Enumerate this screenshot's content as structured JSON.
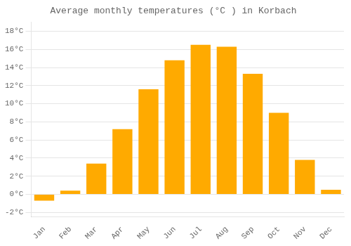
{
  "chart_data": {
    "type": "bar",
    "title": "Average monthly temperatures (°C ) in Korbach",
    "categories": [
      "Jan",
      "Feb",
      "Mar",
      "Apr",
      "May",
      "Jun",
      "Jul",
      "Aug",
      "Sep",
      "Oct",
      "Nov",
      "Dec"
    ],
    "values": [
      -0.7,
      0.4,
      3.4,
      7.2,
      11.6,
      14.8,
      16.5,
      16.3,
      13.3,
      9.0,
      3.8,
      0.5
    ],
    "color": "#FFAA00",
    "ylim": [
      -2.5,
      19
    ],
    "yticks": [
      {
        "value": -2,
        "label": "-2°C"
      },
      {
        "value": 0,
        "label": "0°C"
      },
      {
        "value": 2,
        "label": "2°C"
      },
      {
        "value": 4,
        "label": "4°C"
      },
      {
        "value": 6,
        "label": "6°C"
      },
      {
        "value": 8,
        "label": "8°C"
      },
      {
        "value": 10,
        "label": "10°C"
      },
      {
        "value": 12,
        "label": "12°C"
      },
      {
        "value": 14,
        "label": "14°C"
      },
      {
        "value": 16,
        "label": "16°C"
      },
      {
        "value": 18,
        "label": "18°C"
      }
    ],
    "grid": true
  }
}
